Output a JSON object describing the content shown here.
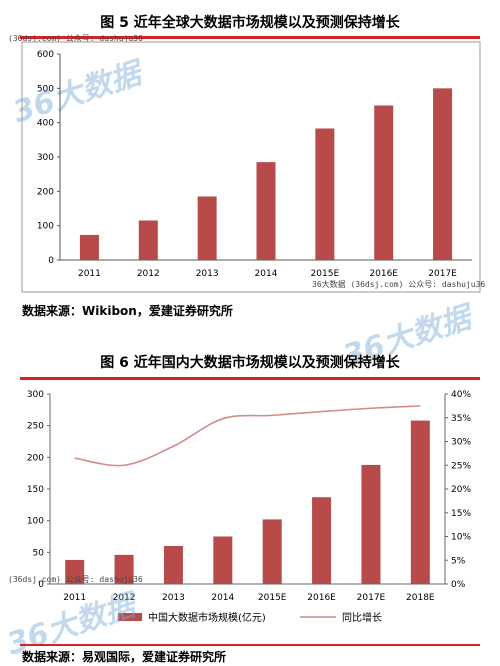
{
  "figure1": {
    "title": "图 5  近年全球大数据市场规模以及预测保持增长",
    "source": "数据来源：Wikibon，爱建证券研究所"
  },
  "figure2": {
    "title": "图 6  近年国内大数据市场规模以及预测保持增长",
    "source": "数据来源：易观国际，爱建证券研究所"
  },
  "watermarks": {
    "top": "(36dsj.com) 公众号: dashuju36",
    "mid": "36大数据 (36dsj.com) 公众号: dashuju36",
    "bottom": "(36dsj.com) 公众号: dashuju36",
    "logo": "36大数据"
  },
  "colors": {
    "bar": "#b94a4a",
    "line": "#d48a8a",
    "accent": "#d62424"
  },
  "chart_data": [
    {
      "type": "bar",
      "categories": [
        "2011",
        "2012",
        "2013",
        "2014",
        "2015E",
        "2016E",
        "2017E"
      ],
      "values": [
        73,
        115,
        185,
        285,
        383,
        450,
        500
      ],
      "yticks": [
        "0",
        "100",
        "200",
        "300",
        "400",
        "500",
        "600"
      ],
      "ylim": [
        0,
        600
      ],
      "grid": false
    },
    {
      "type": "bar",
      "categories": [
        "2011",
        "2012",
        "2013",
        "2014",
        "2015E",
        "2016E",
        "2017E",
        "2018E"
      ],
      "series": [
        {
          "name": "中国大数据市场规模(亿元)",
          "type": "bar",
          "axis": "left",
          "values": [
            38,
            46,
            60,
            75,
            102,
            137,
            188,
            258
          ]
        },
        {
          "name": "同比增长",
          "type": "line",
          "axis": "right",
          "values": [
            26.5,
            25.0,
            29.0,
            34.8,
            35.5,
            36.3,
            37.0,
            37.5
          ]
        }
      ],
      "yticks_left": [
        "0",
        "50",
        "100",
        "150",
        "200",
        "250",
        "300"
      ],
      "ylim_left": [
        0,
        300
      ],
      "yticks_right": [
        "0%",
        "5%",
        "10%",
        "15%",
        "20%",
        "25%",
        "30%",
        "35%",
        "40%"
      ],
      "ylim_right": [
        0,
        40
      ],
      "legend": "bottom",
      "grid": false
    }
  ]
}
